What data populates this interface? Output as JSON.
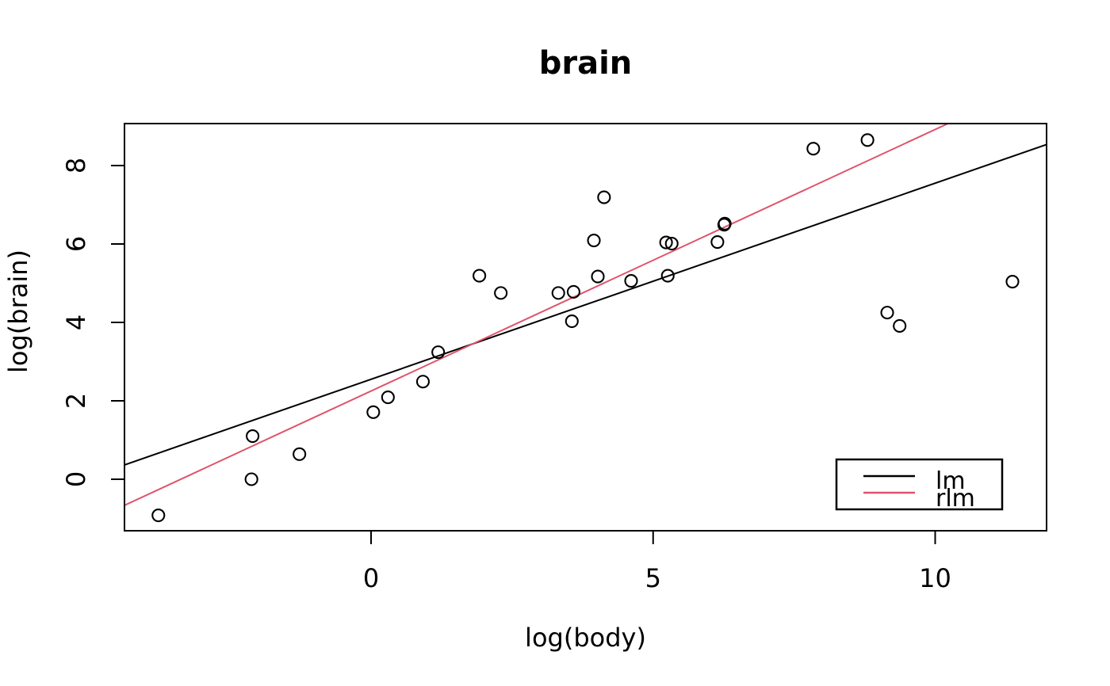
{
  "figure": {
    "background": "#ffffff",
    "foreground": "#000000"
  },
  "chart_data": {
    "type": "scatter",
    "title": "brain",
    "xlabel": "log(body)",
    "ylabel": "log(brain)",
    "xlim": [
      -4.37,
      11.98
    ],
    "ylim": [
      -1.31,
      9.07
    ],
    "x_ticks": [
      0,
      5,
      10
    ],
    "y_ticks": [
      0,
      2,
      4,
      6,
      8
    ],
    "grid": false,
    "marker": "open-circle",
    "marker_color": "#000000",
    "points": [
      [
        0.3,
        2.09
      ],
      [
        6.14,
        6.05
      ],
      [
        3.59,
        4.78
      ],
      [
        3.32,
        4.75
      ],
      [
        0.04,
        1.71
      ],
      [
        9.37,
        3.91
      ],
      [
        7.84,
        8.43
      ],
      [
        5.23,
        6.04
      ],
      [
        6.26,
        6.49
      ],
      [
        2.3,
        4.75
      ],
      [
        1.19,
        3.24
      ],
      [
        6.27,
        6.52
      ],
      [
        5.33,
        6.01
      ],
      [
        4.13,
        7.19
      ],
      [
        8.8,
        8.65
      ],
      [
        9.15,
        4.25
      ],
      [
        1.92,
        5.19
      ],
      [
        3.56,
        4.03
      ],
      [
        -2.12,
        0.0
      ],
      [
        -3.77,
        -0.92
      ],
      [
        0.92,
        2.49
      ],
      [
        4.02,
        5.17
      ],
      [
        4.61,
        5.06
      ],
      [
        3.95,
        6.09
      ],
      [
        -1.27,
        0.64
      ],
      [
        11.37,
        5.04
      ],
      [
        -2.1,
        1.1
      ],
      [
        5.26,
        5.19
      ]
    ],
    "lines": [
      {
        "name": "lm",
        "slope": 0.5,
        "intercept": 2.55,
        "color": "#000000"
      },
      {
        "name": "rlm",
        "slope": 0.667,
        "intercept": 2.25,
        "color": "#DF536B"
      }
    ],
    "legend": {
      "position": "bottom-right",
      "entries": [
        {
          "label": "lm",
          "color": "#000000"
        },
        {
          "label": "rlm",
          "color": "#DF536B"
        }
      ]
    }
  }
}
